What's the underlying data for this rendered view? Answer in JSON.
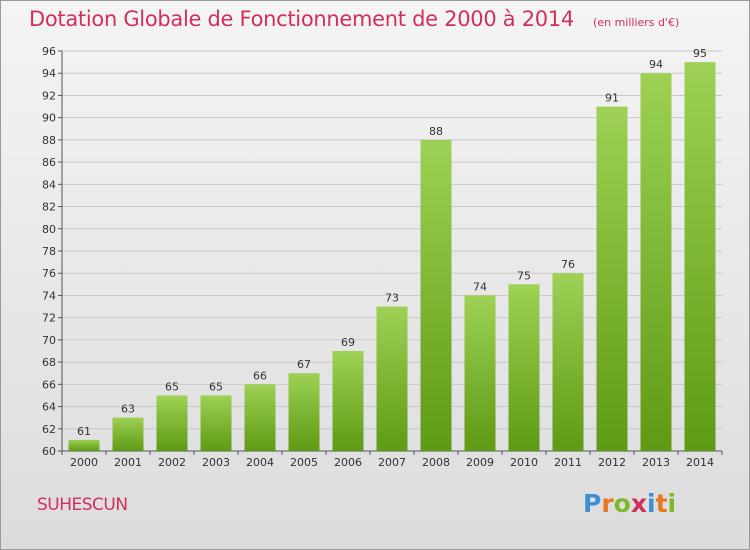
{
  "title": "Dotation Globale de Fonctionnement de 2000 à 2014",
  "subtitle": "(en milliers d'€)",
  "commune": "SUHESCUN",
  "logo_text": "Proxiti",
  "colors": {
    "title": "#d2305c",
    "bar_light": "#9ed155",
    "bar_dark": "#5e9a14",
    "grid": "#c8c8c8"
  },
  "chart_data": {
    "type": "bar",
    "title": "Dotation Globale de Fonctionnement de 2000 à 2014",
    "subtitle": "(en milliers d'€)",
    "xlabel": "",
    "ylabel": "",
    "categories": [
      "2000",
      "2001",
      "2002",
      "2003",
      "2004",
      "2005",
      "2006",
      "2007",
      "2008",
      "2009",
      "2010",
      "2011",
      "2012",
      "2013",
      "2014"
    ],
    "values": [
      61,
      63,
      65,
      65,
      66,
      67,
      69,
      73,
      88,
      74,
      75,
      76,
      91,
      94,
      95
    ],
    "ylim": [
      60,
      96
    ],
    "yticks": [
      60,
      62,
      64,
      66,
      68,
      70,
      72,
      74,
      76,
      78,
      80,
      82,
      84,
      86,
      88,
      90,
      92,
      94,
      96
    ],
    "grid": true,
    "legend": "none"
  }
}
